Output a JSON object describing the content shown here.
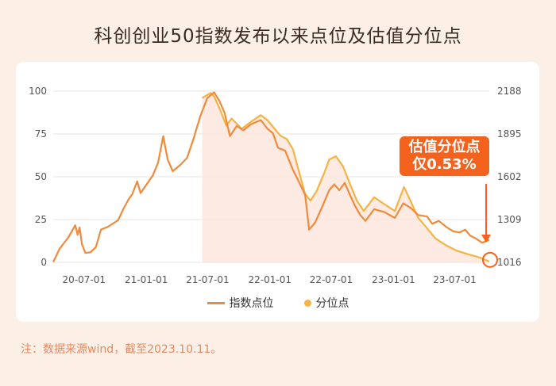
{
  "title": "科创创业50指数发布以来点位及估值分位点",
  "callout": {
    "line1": "估值分位点",
    "line2": "仅0.53%"
  },
  "note": "注：数据来源wind，截至2023.10.11。",
  "colors": {
    "index_line": "#f08a3c",
    "percentile_line": "#f5b342",
    "highlight": "#f5621e",
    "shade": "#fde6dc"
  },
  "chart_data": {
    "type": "line",
    "title": "科创创业50指数发布以来点位及估值分位点",
    "x_ticks": [
      "20-07-01",
      "21-01-01",
      "21-07-01",
      "22-01-01",
      "22-07-01",
      "23-01-01",
      "23-07-01"
    ],
    "x_tick_dates": [
      "2020-07-01",
      "2021-01-01",
      "2021-07-01",
      "2022-01-01",
      "2022-07-01",
      "2023-01-01",
      "2023-07-01"
    ],
    "xlim": [
      "2020-04-01",
      "2023-10-11"
    ],
    "y_left": {
      "ticks": [
        0,
        25,
        50,
        75,
        100
      ],
      "range": [
        0,
        100
      ]
    },
    "y_right": {
      "ticks": [
        "1016",
        "1309",
        "1602",
        "1895",
        "2188"
      ],
      "range": [
        1016,
        2188
      ]
    },
    "legend_placement": "bottom",
    "series": [
      {
        "name": "指数点位",
        "axis": "right",
        "points": [
          [
            "2020-04-01",
            1018
          ],
          [
            "2020-04-20",
            1110
          ],
          [
            "2020-05-15",
            1185
          ],
          [
            "2020-06-05",
            1270
          ],
          [
            "2020-06-12",
            1205
          ],
          [
            "2020-06-18",
            1255
          ],
          [
            "2020-06-25",
            1140
          ],
          [
            "2020-07-05",
            1080
          ],
          [
            "2020-07-20",
            1085
          ],
          [
            "2020-08-05",
            1120
          ],
          [
            "2020-08-20",
            1240
          ],
          [
            "2020-09-10",
            1260
          ],
          [
            "2020-10-10",
            1305
          ],
          [
            "2020-10-25",
            1380
          ],
          [
            "2020-11-10",
            1450
          ],
          [
            "2020-11-20",
            1480
          ],
          [
            "2020-12-05",
            1570
          ],
          [
            "2020-12-15",
            1490
          ],
          [
            "2021-01-05",
            1560
          ],
          [
            "2021-01-20",
            1610
          ],
          [
            "2021-02-05",
            1700
          ],
          [
            "2021-02-20",
            1880
          ],
          [
            "2021-03-05",
            1720
          ],
          [
            "2021-03-20",
            1640
          ],
          [
            "2021-04-10",
            1680
          ],
          [
            "2021-05-01",
            1730
          ],
          [
            "2021-05-20",
            1860
          ],
          [
            "2021-06-10",
            2020
          ],
          [
            "2021-06-30",
            2140
          ],
          [
            "2021-07-20",
            2180
          ],
          [
            "2021-08-05",
            2120
          ],
          [
            "2021-08-20",
            2040
          ],
          [
            "2021-09-05",
            1880
          ],
          [
            "2021-09-25",
            1950
          ],
          [
            "2021-10-15",
            1920
          ],
          [
            "2021-11-05",
            1960
          ],
          [
            "2021-12-05",
            1990
          ],
          [
            "2021-12-25",
            1930
          ],
          [
            "2022-01-10",
            1900
          ],
          [
            "2022-01-25",
            1800
          ],
          [
            "2022-02-15",
            1780
          ],
          [
            "2022-03-10",
            1650
          ],
          [
            "2022-03-25",
            1580
          ],
          [
            "2022-04-15",
            1480
          ],
          [
            "2022-04-27",
            1240
          ],
          [
            "2022-05-15",
            1290
          ],
          [
            "2022-06-05",
            1400
          ],
          [
            "2022-06-25",
            1510
          ],
          [
            "2022-07-10",
            1550
          ],
          [
            "2022-07-25",
            1510
          ],
          [
            "2022-08-10",
            1560
          ],
          [
            "2022-08-25",
            1480
          ],
          [
            "2022-09-10",
            1400
          ],
          [
            "2022-09-25",
            1340
          ],
          [
            "2022-10-10",
            1300
          ],
          [
            "2022-11-05",
            1380
          ],
          [
            "2022-12-05",
            1360
          ],
          [
            "2023-01-05",
            1320
          ],
          [
            "2023-01-30",
            1420
          ],
          [
            "2023-02-20",
            1390
          ],
          [
            "2023-03-15",
            1340
          ],
          [
            "2023-04-10",
            1330
          ],
          [
            "2023-04-25",
            1280
          ],
          [
            "2023-05-15",
            1300
          ],
          [
            "2023-06-05",
            1260
          ],
          [
            "2023-06-25",
            1230
          ],
          [
            "2023-07-15",
            1220
          ],
          [
            "2023-08-01",
            1240
          ],
          [
            "2023-08-15",
            1200
          ],
          [
            "2023-09-01",
            1180
          ],
          [
            "2023-09-20",
            1150
          ],
          [
            "2023-10-11",
            1170
          ]
        ]
      },
      {
        "name": "分位点",
        "axis": "left",
        "points": [
          [
            "2021-06-15",
            96
          ],
          [
            "2021-07-10",
            99
          ],
          [
            "2021-07-20",
            97
          ],
          [
            "2021-08-05",
            90
          ],
          [
            "2021-08-25",
            80
          ],
          [
            "2021-09-10",
            84
          ],
          [
            "2021-10-10",
            78
          ],
          [
            "2021-11-05",
            82
          ],
          [
            "2021-12-05",
            86
          ],
          [
            "2021-12-25",
            83
          ],
          [
            "2022-01-15",
            78
          ],
          [
            "2022-02-01",
            74
          ],
          [
            "2022-02-20",
            72
          ],
          [
            "2022-03-10",
            66
          ],
          [
            "2022-03-25",
            55
          ],
          [
            "2022-04-15",
            40
          ],
          [
            "2022-05-01",
            36
          ],
          [
            "2022-05-20",
            42
          ],
          [
            "2022-06-10",
            52
          ],
          [
            "2022-06-25",
            60
          ],
          [
            "2022-07-15",
            62
          ],
          [
            "2022-08-05",
            56
          ],
          [
            "2022-08-25",
            46
          ],
          [
            "2022-09-15",
            36
          ],
          [
            "2022-10-05",
            30
          ],
          [
            "2022-11-05",
            38
          ],
          [
            "2022-12-05",
            34
          ],
          [
            "2023-01-05",
            30
          ],
          [
            "2023-02-01",
            44
          ],
          [
            "2023-02-20",
            36
          ],
          [
            "2023-03-15",
            26
          ],
          [
            "2023-04-10",
            20
          ],
          [
            "2023-05-05",
            14
          ],
          [
            "2023-06-05",
            10
          ],
          [
            "2023-07-05",
            7
          ],
          [
            "2023-08-05",
            5
          ],
          [
            "2023-09-10",
            3
          ],
          [
            "2023-10-11",
            0.53
          ]
        ]
      }
    ],
    "annotation": {
      "text": "估值分位点仅0.53%",
      "date": "2023-10-11",
      "value": 0.53
    }
  }
}
